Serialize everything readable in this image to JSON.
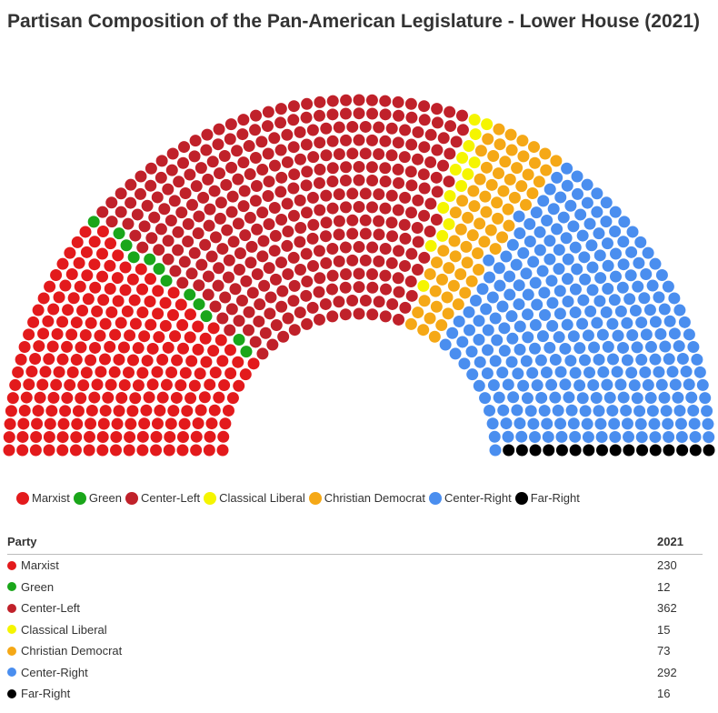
{
  "title": "Partisan Composition of the Pan-American Legislature - Lower House (2021)",
  "chart_data": {
    "type": "parliament",
    "title": "Partisan Composition of the Pan-American Legislature - Lower House (2021)",
    "series": [
      {
        "name": "Marxist",
        "value": 230,
        "color": "#e31a1c"
      },
      {
        "name": "Green",
        "value": 12,
        "color": "#1aa61a"
      },
      {
        "name": "Center-Left",
        "value": 362,
        "color": "#c0212a"
      },
      {
        "name": "Classical Liberal",
        "value": 15,
        "color": "#f5f500"
      },
      {
        "name": "Christian Democrat",
        "value": 73,
        "color": "#f5a816"
      },
      {
        "name": "Center-Right",
        "value": 292,
        "color": "#4a8eef"
      },
      {
        "name": "Far-Right",
        "value": 16,
        "color": "#000000"
      }
    ]
  },
  "table": {
    "header_party": "Party",
    "header_year": "2021"
  }
}
